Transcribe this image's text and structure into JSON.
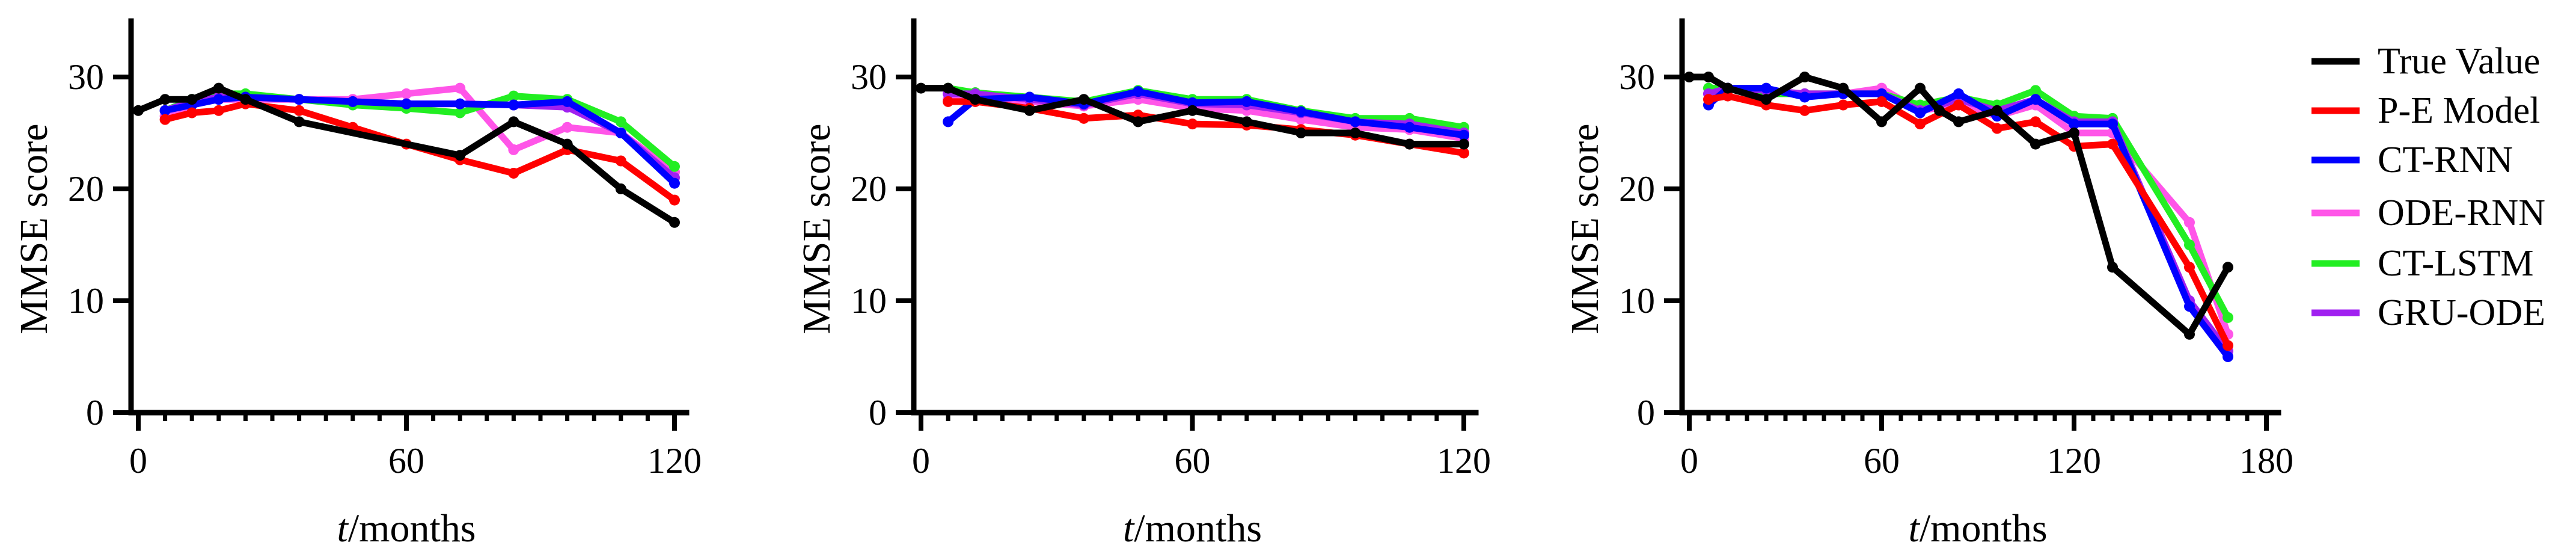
{
  "legend": {
    "entries": [
      {
        "name": "True Value",
        "color": "#000000"
      },
      {
        "name": "P-E Model",
        "color": "#ff0000"
      },
      {
        "name": "CT-RNN",
        "color": "#0000ff"
      },
      {
        "name": "ODE-RNN",
        "color": "#ff55e8"
      },
      {
        "name": "CT-LSTM",
        "color": "#22ee22"
      },
      {
        "name": "GRU-ODE",
        "color": "#a020f0"
      }
    ]
  },
  "chart_data": [
    {
      "type": "line",
      "title": "",
      "xlabel_italic": "t",
      "xlabel_rest": "/months",
      "ylabel": "MMSE score",
      "xlim": [
        0,
        120
      ],
      "ylim": [
        0,
        35
      ],
      "xticks": [
        0,
        60,
        120
      ],
      "yticks": [
        0,
        10,
        20,
        30
      ],
      "x_minor_step": 6,
      "series": [
        {
          "name": "ODE-RNN",
          "x": [
            6,
            12,
            18,
            24,
            36,
            48,
            60,
            72,
            84,
            96,
            108,
            120
          ],
          "values": [
            26.5,
            27.5,
            28,
            28,
            28,
            28,
            28.5,
            29,
            23.5,
            25.5,
            25,
            21.5
          ]
        },
        {
          "name": "CT-LSTM",
          "x": [
            6,
            12,
            18,
            24,
            36,
            48,
            60,
            72,
            84,
            96,
            108,
            120
          ],
          "values": [
            27,
            28,
            28.5,
            28.5,
            28,
            27.5,
            27.2,
            26.8,
            28.3,
            28,
            26,
            22
          ]
        },
        {
          "name": "GRU-ODE",
          "x": [
            6,
            12,
            18,
            24,
            36,
            48,
            60,
            72,
            84,
            96,
            108,
            120
          ],
          "values": [
            27,
            27.8,
            28.2,
            28.2,
            28,
            27.8,
            27.6,
            27.6,
            27.5,
            27.3,
            25,
            21
          ]
        },
        {
          "name": "CT-RNN",
          "x": [
            6,
            12,
            18,
            24,
            36,
            48,
            60,
            72,
            84,
            96,
            108,
            120
          ],
          "values": [
            27,
            27.5,
            28,
            28.2,
            28,
            27.8,
            27.6,
            27.6,
            27.5,
            27.8,
            25,
            20.5
          ]
        },
        {
          "name": "P-E Model",
          "x": [
            6,
            12,
            18,
            24,
            36,
            48,
            60,
            72,
            84,
            96,
            108,
            120
          ],
          "values": [
            26.2,
            26.8,
            27,
            27.6,
            27,
            25.5,
            24,
            22.6,
            21.4,
            23.5,
            22.5,
            19
          ]
        },
        {
          "name": "True Value",
          "x": [
            0,
            6,
            12,
            18,
            24,
            36,
            72,
            84,
            96,
            108,
            120
          ],
          "values": [
            27,
            28,
            28,
            29,
            28,
            26,
            23,
            26,
            24,
            20,
            17
          ]
        }
      ]
    },
    {
      "type": "line",
      "title": "",
      "xlabel_italic": "t",
      "xlabel_rest": "/months",
      "ylabel": "MMSE score",
      "xlim": [
        0,
        120
      ],
      "ylim": [
        0,
        35
      ],
      "xticks": [
        0,
        60,
        120
      ],
      "yticks": [
        0,
        10,
        20,
        30
      ],
      "x_minor_step": 6,
      "series": [
        {
          "name": "ODE-RNN",
          "x": [
            6,
            12,
            24,
            36,
            48,
            60,
            72,
            84,
            96,
            108,
            120
          ],
          "values": [
            28,
            28.3,
            27.8,
            27.4,
            28,
            27.2,
            27,
            26.2,
            25.5,
            25.3,
            24.5
          ]
        },
        {
          "name": "CT-LSTM",
          "x": [
            6,
            12,
            24,
            36,
            48,
            60,
            72,
            84,
            96,
            108,
            120
          ],
          "values": [
            29,
            28.6,
            28.2,
            27.8,
            28.8,
            28,
            28,
            27,
            26.3,
            26.3,
            25.5
          ]
        },
        {
          "name": "GRU-ODE",
          "x": [
            6,
            12,
            24,
            36,
            48,
            60,
            72,
            84,
            96,
            108,
            120
          ],
          "values": [
            28.5,
            28.5,
            28,
            27.5,
            28.5,
            27.6,
            27.5,
            26.8,
            26,
            25.8,
            25
          ]
        },
        {
          "name": "CT-RNN",
          "x": [
            6,
            12,
            24,
            36,
            48,
            60,
            72,
            84,
            96,
            108,
            120
          ],
          "values": [
            26,
            28,
            28.2,
            27.6,
            28.7,
            27.7,
            27.8,
            26.9,
            26,
            25.5,
            24.8
          ]
        },
        {
          "name": "P-E Model",
          "x": [
            6,
            12,
            24,
            36,
            48,
            60,
            72,
            84,
            96,
            108,
            120
          ],
          "values": [
            27.8,
            27.8,
            27.2,
            26.3,
            26.6,
            25.8,
            25.7,
            25.3,
            24.8,
            24,
            23.2
          ]
        },
        {
          "name": "True Value",
          "x": [
            0,
            6,
            12,
            24,
            36,
            48,
            60,
            72,
            84,
            96,
            108,
            120
          ],
          "values": [
            29,
            29,
            28,
            27,
            28,
            26,
            27,
            26,
            25,
            25,
            24,
            24
          ]
        }
      ]
    },
    {
      "type": "line",
      "title": "",
      "xlabel_italic": "t",
      "xlabel_rest": "/months",
      "ylabel": "MMSE score",
      "xlim": [
        0,
        180
      ],
      "ylim": [
        0,
        35
      ],
      "xticks": [
        0,
        60,
        120,
        180
      ],
      "yticks": [
        0,
        10,
        20,
        30
      ],
      "x_minor_step": 6,
      "series": [
        {
          "name": "ODE-RNN",
          "x": [
            6,
            12,
            24,
            36,
            48,
            60,
            72,
            84,
            96,
            108,
            120,
            132,
            156,
            168
          ],
          "values": [
            28.5,
            29,
            28.5,
            28.5,
            28.5,
            29,
            27,
            27.5,
            26.5,
            27.5,
            25,
            25,
            17,
            7
          ]
        },
        {
          "name": "CT-LSTM",
          "x": [
            6,
            12,
            24,
            36,
            48,
            60,
            72,
            84,
            96,
            108,
            120,
            132,
            156,
            168
          ],
          "values": [
            29,
            29,
            28.5,
            28.5,
            28.5,
            28.5,
            27.5,
            28.2,
            27.5,
            28.8,
            26.5,
            26.3,
            15,
            8.5
          ]
        },
        {
          "name": "GRU-ODE",
          "x": [
            6,
            12,
            24,
            36,
            48,
            60,
            72,
            84,
            96,
            108,
            120,
            132,
            156,
            168
          ],
          "values": [
            28.5,
            29,
            28.8,
            28.5,
            28.5,
            28.5,
            27,
            28,
            27,
            28,
            26,
            26,
            10,
            5.5
          ]
        },
        {
          "name": "CT-RNN",
          "x": [
            6,
            12,
            24,
            36,
            48,
            60,
            72,
            84,
            96,
            108,
            120,
            132,
            156,
            168
          ],
          "values": [
            27.5,
            29,
            29,
            28.2,
            28.5,
            28.5,
            26.8,
            28.5,
            26.5,
            28,
            25.8,
            25.8,
            9.5,
            5
          ]
        },
        {
          "name": "P-E Model",
          "x": [
            6,
            12,
            24,
            36,
            48,
            60,
            72,
            84,
            96,
            108,
            120,
            132,
            156,
            168
          ],
          "values": [
            28,
            28.3,
            27.5,
            27,
            27.5,
            27.8,
            25.8,
            27.5,
            25.4,
            26,
            23.8,
            24,
            13,
            6
          ]
        },
        {
          "name": "True Value",
          "x": [
            0,
            6,
            12,
            24,
            36,
            48,
            60,
            72,
            78,
            84,
            96,
            108,
            120,
            132,
            156,
            168
          ],
          "values": [
            30,
            30,
            29,
            28,
            30,
            29,
            26,
            29,
            27,
            26,
            27,
            24,
            25,
            13,
            7,
            13
          ]
        }
      ]
    }
  ]
}
